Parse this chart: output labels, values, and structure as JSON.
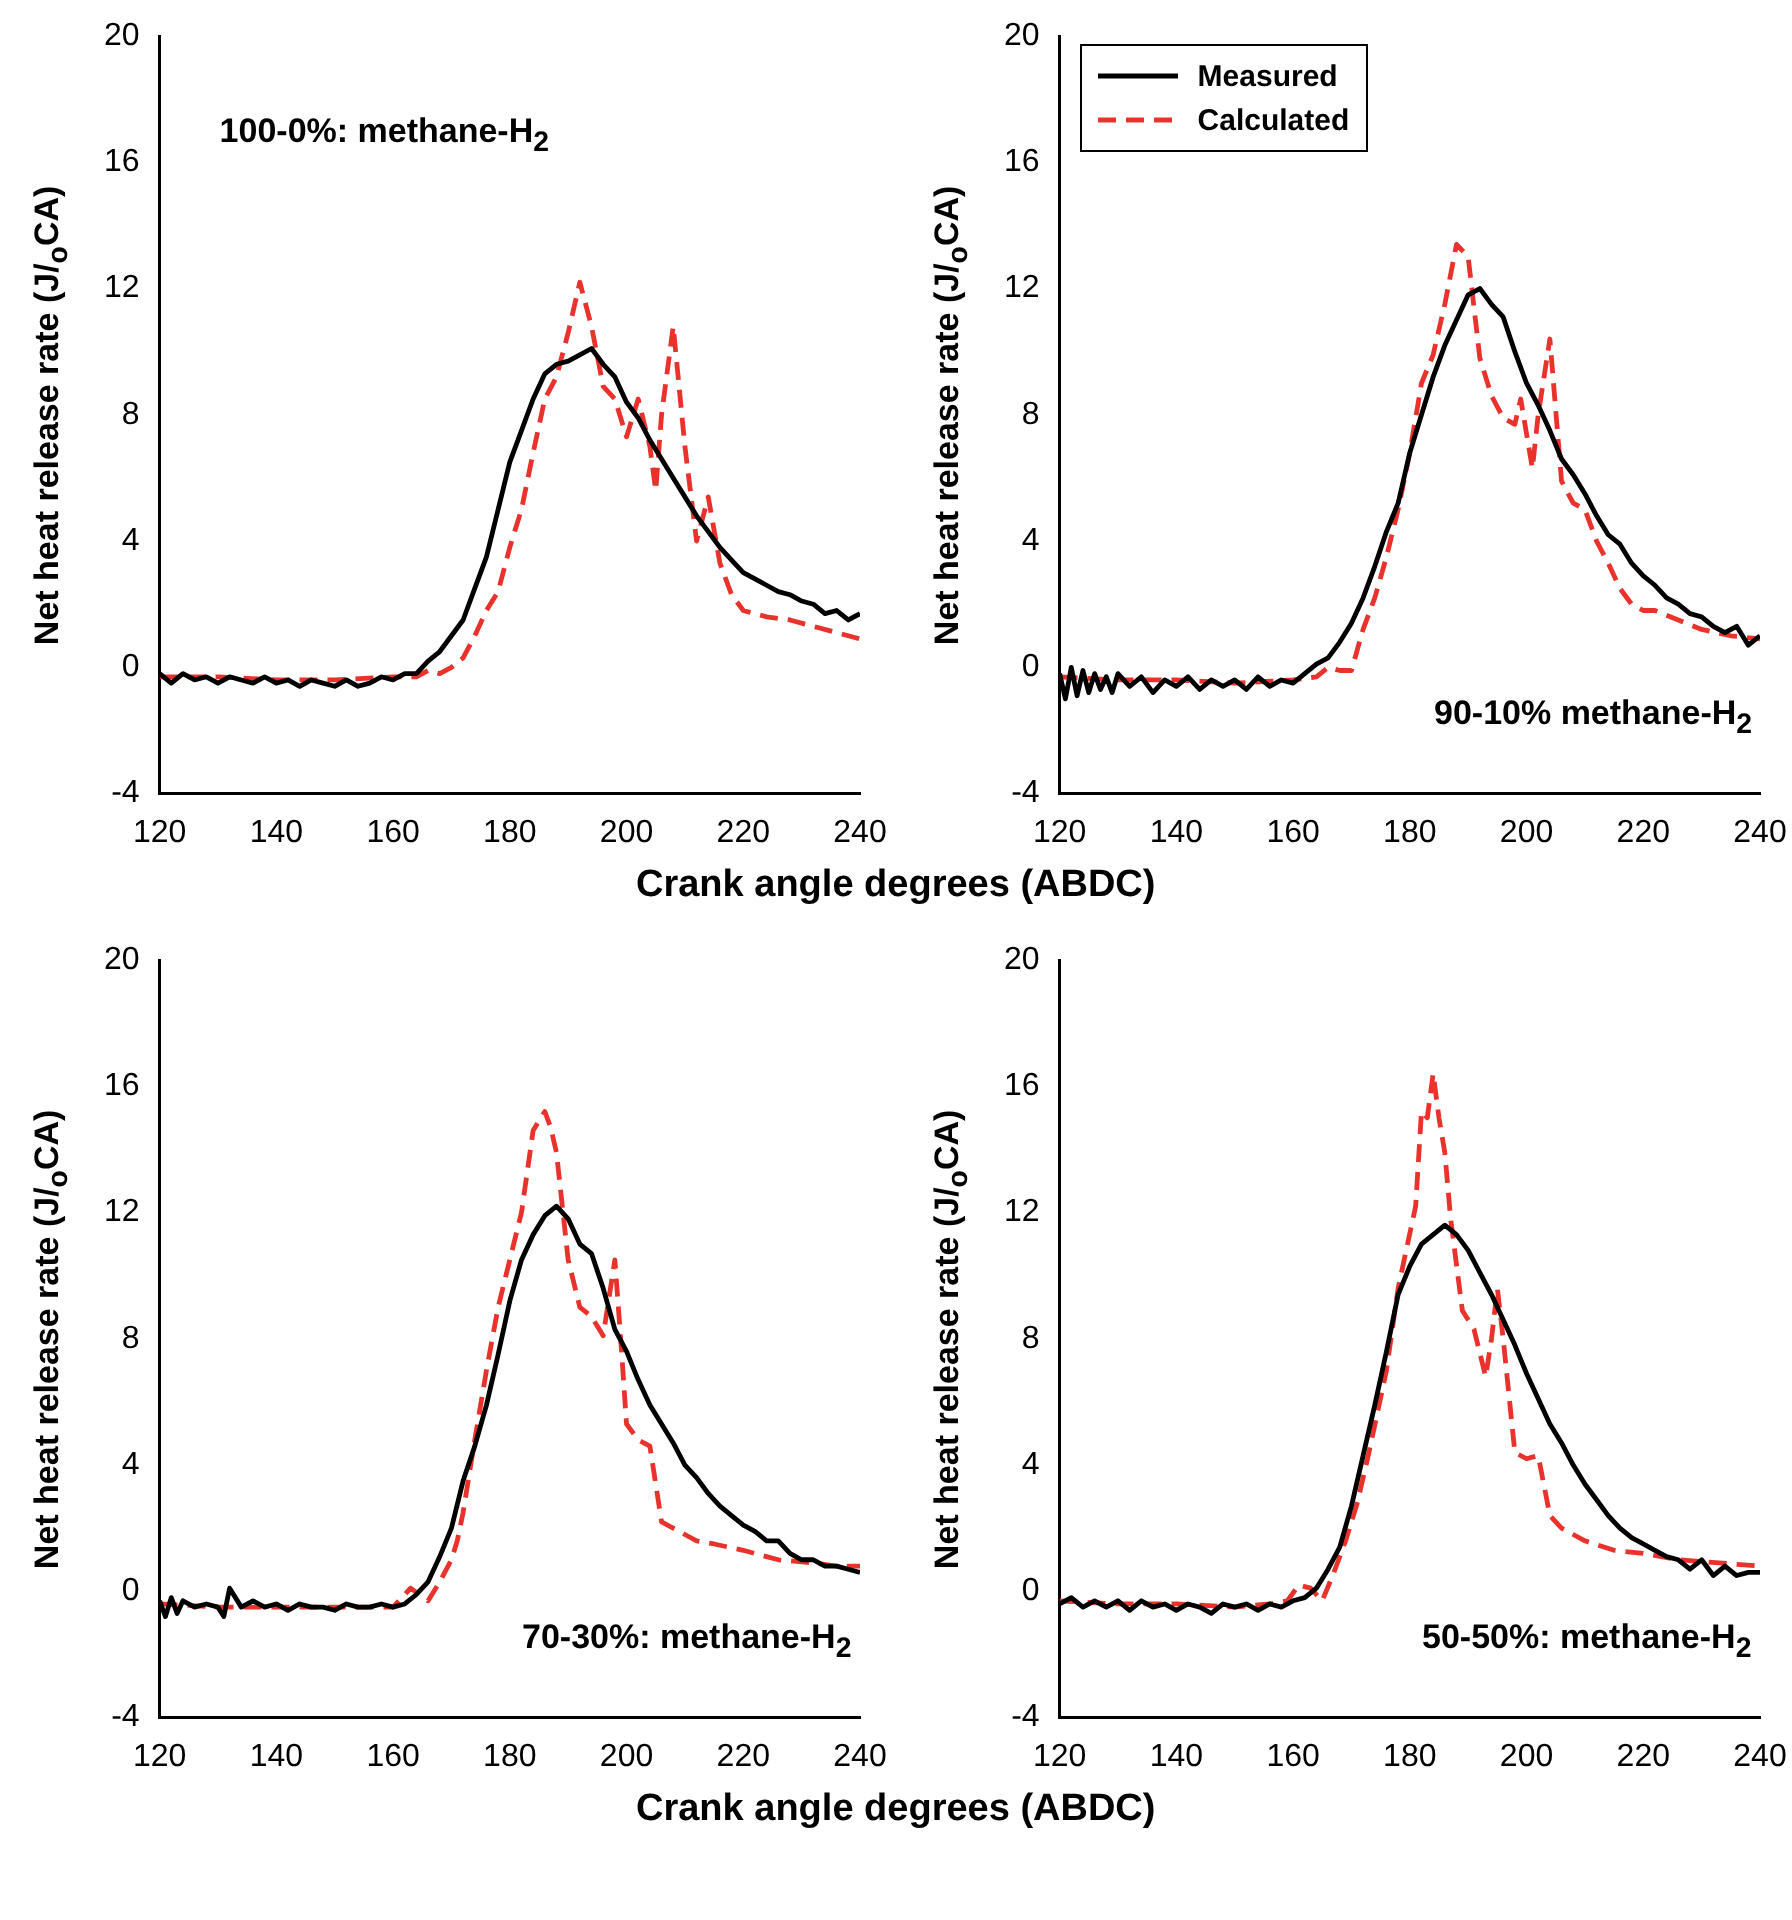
{
  "chart_data": [
    {
      "type": "line",
      "xlabel": "Crank angle degrees (ABDC)",
      "ylabel": "Net heat release rate (J/$_{o}$CA)",
      "annotations": [
        "100-0%: methane-H$_{2}$"
      ],
      "xlim": [
        120,
        240
      ],
      "xticks": [
        120,
        140,
        160,
        180,
        200,
        220,
        240
      ],
      "ylim": [
        -4,
        20
      ],
      "yticks": [
        -4,
        0,
        4,
        8,
        12,
        16,
        20
      ],
      "grid": false,
      "legend": false,
      "marker": "none",
      "series": [
        {
          "color": "#000000",
          "line_style": "solid",
          "x": [
            120,
            122,
            124,
            126,
            128,
            130,
            132,
            134,
            136,
            138,
            140,
            142,
            144,
            146,
            148,
            150,
            152,
            154,
            156,
            158,
            160,
            162,
            164,
            166,
            168,
            170,
            172,
            174,
            176,
            178,
            180,
            182,
            184,
            186,
            188,
            190,
            192,
            194,
            196,
            198,
            200,
            202,
            204,
            206,
            208,
            210,
            212,
            214,
            216,
            218,
            220,
            222,
            224,
            226,
            228,
            230,
            232,
            234,
            236,
            238,
            240
          ],
          "values": [
            -0.2,
            -0.5,
            -0.2,
            -0.4,
            -0.3,
            -0.5,
            -0.3,
            -0.4,
            -0.5,
            -0.3,
            -0.5,
            -0.4,
            -0.6,
            -0.4,
            -0.5,
            -0.6,
            -0.4,
            -0.6,
            -0.5,
            -0.3,
            -0.4,
            -0.2,
            -0.2,
            0.2,
            0.5,
            1.0,
            1.5,
            2.5,
            3.5,
            5.0,
            6.5,
            7.5,
            8.5,
            9.3,
            9.6,
            9.7,
            9.9,
            10.1,
            9.6,
            9.2,
            8.4,
            7.9,
            7.2,
            6.6,
            6.0,
            5.4,
            4.8,
            4.3,
            3.8,
            3.4,
            3.0,
            2.8,
            2.6,
            2.4,
            2.3,
            2.1,
            2.0,
            1.7,
            1.8,
            1.5,
            1.7
          ]
        },
        {
          "color": "#e8322b",
          "line_style": "dashed",
          "x": [
            120,
            130,
            140,
            150,
            160,
            164,
            166,
            168,
            170,
            172,
            174,
            176,
            178,
            180,
            182,
            184,
            186,
            188,
            190,
            192,
            194,
            196,
            198,
            200,
            202,
            204,
            205,
            206,
            208,
            210,
            212,
            214,
            216,
            218,
            220,
            224,
            228,
            232,
            236,
            240
          ],
          "values": [
            -0.3,
            -0.3,
            -0.4,
            -0.4,
            -0.3,
            -0.3,
            -0.1,
            -0.2,
            0,
            0.3,
            1.0,
            1.8,
            2.4,
            3.8,
            5.0,
            6.8,
            8.5,
            9.2,
            10.6,
            12.2,
            10.8,
            8.9,
            8.5,
            7.3,
            8.5,
            7.0,
            5.6,
            8.0,
            10.8,
            7.0,
            4.0,
            5.4,
            3.3,
            2.3,
            1.8,
            1.6,
            1.5,
            1.3,
            1.1,
            0.9
          ]
        }
      ]
    },
    {
      "type": "line",
      "ylabel": "Net heat release rate (J/$_{o}$CA)",
      "annotations": [
        "90-10% methane-H$_{2}$"
      ],
      "xlim": [
        120,
        240
      ],
      "xticks": [
        120,
        140,
        160,
        180,
        200,
        220,
        240
      ],
      "ylim": [
        -4,
        20
      ],
      "yticks": [
        -4,
        0,
        4,
        8,
        12,
        16,
        20
      ],
      "grid": false,
      "legend": "top left",
      "marker": "none",
      "series": [
        {
          "name": "Measured",
          "color": "#000000",
          "line_style": "solid",
          "x": [
            120,
            121,
            122,
            123,
            124,
            125,
            126,
            127,
            128,
            129,
            130,
            132,
            134,
            136,
            138,
            140,
            142,
            144,
            146,
            148,
            150,
            152,
            154,
            156,
            158,
            160,
            162,
            164,
            166,
            168,
            170,
            172,
            174,
            176,
            178,
            180,
            182,
            184,
            186,
            188,
            190,
            192,
            194,
            196,
            198,
            200,
            202,
            204,
            206,
            208,
            210,
            212,
            214,
            216,
            218,
            220,
            222,
            224,
            226,
            228,
            230,
            232,
            234,
            236,
            238,
            240
          ],
          "values": [
            -0.2,
            -1.0,
            0,
            -0.9,
            -0.1,
            -0.8,
            -0.2,
            -0.7,
            -0.3,
            -0.8,
            -0.2,
            -0.6,
            -0.3,
            -0.8,
            -0.4,
            -0.6,
            -0.3,
            -0.7,
            -0.4,
            -0.6,
            -0.4,
            -0.7,
            -0.3,
            -0.6,
            -0.4,
            -0.5,
            -0.2,
            0.1,
            0.3,
            0.8,
            1.4,
            2.2,
            3.2,
            4.3,
            5.2,
            6.8,
            8.0,
            9.2,
            10.2,
            11.0,
            11.8,
            12.0,
            11.5,
            11.1,
            10.0,
            9.0,
            8.3,
            7.5,
            6.6,
            6.1,
            5.5,
            4.8,
            4.2,
            3.9,
            3.3,
            2.9,
            2.6,
            2.2,
            2.0,
            1.7,
            1.6,
            1.3,
            1.1,
            1.3,
            0.7,
            1.0
          ]
        },
        {
          "name": "Calculated",
          "color": "#e8322b",
          "line_style": "dashed",
          "x": [
            120,
            130,
            140,
            150,
            160,
            164,
            166,
            168,
            170,
            172,
            174,
            176,
            178,
            180,
            182,
            184,
            186,
            188,
            190,
            192,
            194,
            196,
            198,
            199,
            201,
            202,
            204,
            206,
            208,
            210,
            212,
            214,
            216,
            218,
            220,
            222,
            226,
            230,
            235,
            240
          ],
          "values": [
            -0.3,
            -0.4,
            -0.4,
            -0.5,
            -0.4,
            -0.3,
            0,
            -0.1,
            -0.1,
            1.2,
            2.2,
            3.5,
            5.0,
            6.8,
            9.0,
            9.9,
            11.5,
            13.4,
            13.0,
            9.8,
            8.6,
            7.9,
            7.7,
            8.5,
            6.3,
            8.0,
            10.4,
            5.9,
            5.2,
            5.0,
            4.0,
            3.3,
            2.5,
            2.0,
            1.8,
            1.8,
            1.5,
            1.2,
            1.0,
            0.9
          ]
        }
      ]
    },
    {
      "type": "line",
      "xlabel": "Crank angle degrees (ABDC)",
      "ylabel": "Net heat release rate (J/$_{o}$CA)",
      "annotations": [
        "70-30%: methane-H$_{2}$"
      ],
      "xlim": [
        120,
        240
      ],
      "xticks": [
        120,
        140,
        160,
        180,
        200,
        220,
        240
      ],
      "ylim": [
        -4,
        20
      ],
      "yticks": [
        -4,
        0,
        4,
        8,
        12,
        16,
        20
      ],
      "grid": false,
      "legend": false,
      "marker": "none",
      "series": [
        {
          "color": "#000000",
          "line_style": "solid",
          "x": [
            120,
            121,
            122,
            123,
            124,
            126,
            128,
            130,
            131,
            132,
            134,
            136,
            138,
            140,
            142,
            144,
            146,
            148,
            150,
            152,
            154,
            156,
            158,
            160,
            162,
            164,
            166,
            168,
            170,
            172,
            174,
            176,
            178,
            180,
            182,
            184,
            186,
            188,
            190,
            192,
            194,
            196,
            198,
            200,
            202,
            204,
            206,
            208,
            210,
            212,
            214,
            216,
            218,
            220,
            222,
            224,
            226,
            228,
            230,
            232,
            234,
            236,
            238,
            240
          ],
          "values": [
            -0.3,
            -0.8,
            -0.2,
            -0.7,
            -0.3,
            -0.5,
            -0.4,
            -0.5,
            -0.8,
            0.1,
            -0.5,
            -0.3,
            -0.5,
            -0.4,
            -0.6,
            -0.4,
            -0.5,
            -0.5,
            -0.6,
            -0.4,
            -0.5,
            -0.5,
            -0.4,
            -0.5,
            -0.4,
            -0.1,
            0.3,
            1.1,
            2.0,
            3.5,
            4.6,
            5.9,
            7.5,
            9.2,
            10.5,
            11.3,
            11.9,
            12.2,
            11.8,
            11.0,
            10.7,
            9.6,
            8.3,
            7.6,
            6.7,
            5.9,
            5.3,
            4.7,
            4.0,
            3.6,
            3.1,
            2.7,
            2.4,
            2.1,
            1.9,
            1.6,
            1.6,
            1.2,
            1.0,
            1.0,
            0.8,
            0.8,
            0.7,
            0.6
          ]
        },
        {
          "color": "#e8322b",
          "line_style": "dashed",
          "x": [
            120,
            130,
            140,
            150,
            160,
            163,
            166,
            168,
            170,
            171,
            172,
            174,
            176,
            178,
            180,
            182,
            184,
            186,
            187,
            188,
            189,
            190,
            192,
            194,
            196,
            198,
            199,
            200,
            202,
            204,
            206,
            208,
            210,
            212,
            215,
            220,
            226,
            232,
            236,
            240
          ],
          "values": [
            -0.4,
            -0.5,
            -0.5,
            -0.5,
            -0.5,
            0.1,
            -0.3,
            0.3,
            1.0,
            1.6,
            2.5,
            4.8,
            7.0,
            9.0,
            10.5,
            12.0,
            14.6,
            15.2,
            14.7,
            13.9,
            12.2,
            10.5,
            9.0,
            8.7,
            8.1,
            10.5,
            8.0,
            5.3,
            4.8,
            4.6,
            2.2,
            2.0,
            1.8,
            1.6,
            1.5,
            1.3,
            1.0,
            0.9,
            0.8,
            0.8
          ]
        }
      ]
    },
    {
      "type": "line",
      "ylabel": "Net heat release rate (J/$_{o}$CA)",
      "annotations": [
        "50-50%: methane-H$_{2}$"
      ],
      "xlim": [
        120,
        240
      ],
      "xticks": [
        120,
        140,
        160,
        180,
        200,
        220,
        240
      ],
      "ylim": [
        -4,
        20
      ],
      "yticks": [
        -4,
        0,
        4,
        8,
        12,
        16,
        20
      ],
      "grid": false,
      "legend": false,
      "marker": "none",
      "series": [
        {
          "color": "#000000",
          "line_style": "solid",
          "x": [
            120,
            122,
            124,
            126,
            128,
            130,
            132,
            134,
            136,
            138,
            140,
            142,
            144,
            146,
            148,
            150,
            152,
            154,
            156,
            158,
            160,
            162,
            164,
            166,
            168,
            170,
            172,
            174,
            176,
            178,
            180,
            182,
            184,
            186,
            188,
            190,
            192,
            194,
            196,
            198,
            200,
            202,
            204,
            206,
            208,
            210,
            212,
            214,
            216,
            218,
            220,
            222,
            224,
            226,
            228,
            230,
            232,
            234,
            236,
            238,
            240
          ],
          "values": [
            -0.4,
            -0.2,
            -0.5,
            -0.3,
            -0.5,
            -0.3,
            -0.6,
            -0.3,
            -0.5,
            -0.4,
            -0.6,
            -0.4,
            -0.5,
            -0.7,
            -0.4,
            -0.5,
            -0.4,
            -0.6,
            -0.4,
            -0.5,
            -0.3,
            -0.2,
            0.1,
            0.7,
            1.4,
            2.7,
            4.3,
            5.9,
            7.6,
            9.4,
            10.3,
            11.0,
            11.3,
            11.6,
            11.3,
            10.8,
            10.1,
            9.4,
            8.6,
            7.8,
            6.9,
            6.1,
            5.3,
            4.7,
            4.0,
            3.4,
            2.9,
            2.4,
            2.0,
            1.7,
            1.5,
            1.3,
            1.1,
            1.0,
            0.7,
            1.0,
            0.5,
            0.8,
            0.5,
            0.6,
            0.6
          ]
        },
        {
          "color": "#e8322b",
          "line_style": "dashed",
          "x": [
            120,
            130,
            140,
            150,
            156,
            159,
            161,
            163,
            165,
            167,
            169,
            171,
            173,
            176,
            178,
            181,
            182,
            183,
            184,
            185,
            186,
            187,
            189,
            191,
            193,
            194,
            195,
            196,
            198,
            200,
            202,
            204,
            206,
            208,
            210,
            215,
            220,
            226,
            233,
            240
          ],
          "values": [
            -0.3,
            -0.4,
            -0.4,
            -0.5,
            -0.4,
            -0.3,
            0.2,
            0.1,
            -0.3,
            0.6,
            1.6,
            2.8,
            4.4,
            7.0,
            9.6,
            12.2,
            15.2,
            15.0,
            16.4,
            15.0,
            13.9,
            11.8,
            8.9,
            8.3,
            6.8,
            8.0,
            9.6,
            8.0,
            4.4,
            4.2,
            4.3,
            2.4,
            2.0,
            1.8,
            1.6,
            1.3,
            1.2,
            1.0,
            0.9,
            0.8
          ]
        }
      ]
    }
  ]
}
